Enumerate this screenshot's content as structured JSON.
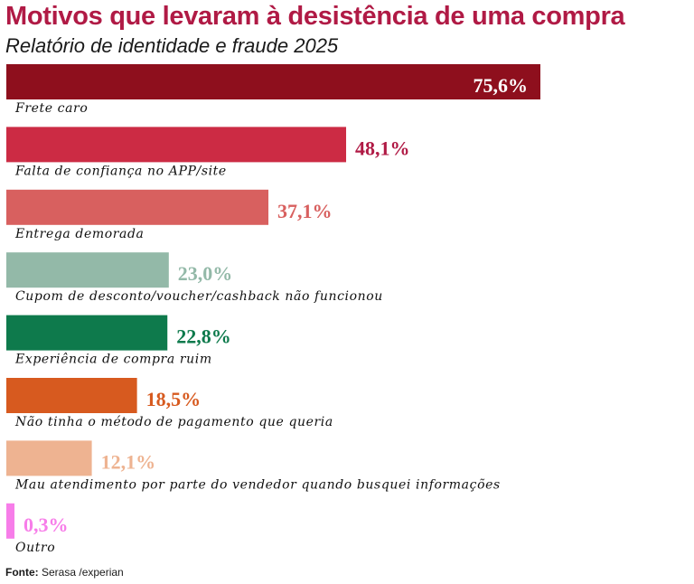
{
  "header": {
    "title": "Motivos que levaram à desistência de uma compra",
    "subtitle": "Relatório de identidade e fraude 2025"
  },
  "footer": {
    "source_label": "Fonte:",
    "source_text": "Serasa /experian"
  },
  "chart_data": {
    "type": "bar",
    "orientation": "horizontal",
    "title": "Motivos que levaram à desistência de uma compra",
    "subtitle": "Relatório de identidade e fraude 2025",
    "unit": "%",
    "grid": false,
    "legend": "none",
    "xlim": [
      0,
      100
    ],
    "categories": [
      "Frete caro",
      "Falta de confiança no APP/site",
      "Entrega demorada",
      "Cupom de desconto/voucher/cashback não funcionou",
      "Experiência de compra ruim",
      "Não tinha o método de pagamento que queria",
      "Mau atendimento por parte do vendedor quando busquei informações",
      "Outro"
    ],
    "values": [
      75.6,
      48.1,
      37.1,
      23.0,
      22.8,
      18.5,
      12.1,
      0.3
    ],
    "value_labels": [
      "75,6%",
      "48,1%",
      "37,1%",
      "23,0%",
      "22,8%",
      "18,5%",
      "12,1%",
      "0,3%"
    ],
    "colors": [
      "#8e0f1d",
      "#cc2b44",
      "#d8605f",
      "#93b9a8",
      "#0e7a4c",
      "#d75a1f",
      "#eeb391",
      "#f77de9"
    ],
    "label_colors": [
      "#ffffff",
      "#b01a45",
      "#d8605f",
      "#93b9a8",
      "#0e7a4c",
      "#d75a1f",
      "#eeb391",
      "#f77de9"
    ],
    "label_inside": [
      true,
      false,
      false,
      false,
      false,
      false,
      false,
      false
    ]
  }
}
